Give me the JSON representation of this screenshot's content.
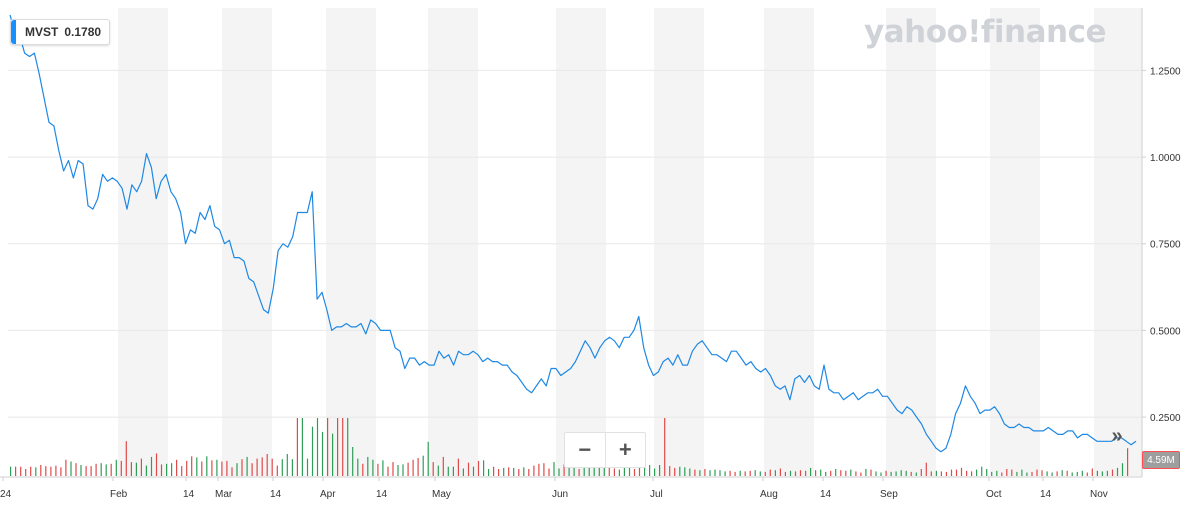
{
  "ticker": {
    "symbol": "MVST",
    "price": "0.1780"
  },
  "logo_text": "yahoo!finance",
  "zoom": {
    "minus": "−",
    "plus": "+"
  },
  "nav_next": "»",
  "volume_badge": "4.59M",
  "colors": {
    "line": "#1e88e5",
    "volume_up": "#2e9e57",
    "volume_down": "#e04a4a",
    "band": "#f4f4f4",
    "accent": "#188fff"
  },
  "chart_data": {
    "type": "line",
    "title": "",
    "xlabel": "",
    "ylabel": "",
    "x_ticks": [
      "24",
      "Feb",
      "14",
      "Mar",
      "14",
      "Apr",
      "14",
      "May",
      "Jun",
      "Jul",
      "Aug",
      "14",
      "Sep",
      "Oct",
      "14",
      "Nov"
    ],
    "y_ticks": [
      "0.2500",
      "0.5000",
      "0.7500",
      "1.0000",
      "1.2500"
    ],
    "ylim": [
      0.08,
      1.43
    ],
    "grid": true,
    "series": [
      {
        "values": [
          1.41,
          1.36,
          1.35,
          1.3,
          1.29,
          1.3,
          1.24,
          1.17,
          1.1,
          1.09,
          1.02,
          0.96,
          0.99,
          0.94,
          0.99,
          0.98,
          0.86,
          0.85,
          0.88,
          0.95,
          0.93,
          0.94,
          0.93,
          0.91,
          0.85,
          0.92,
          0.9,
          0.93,
          1.01,
          0.97,
          0.88,
          0.93,
          0.95,
          0.9,
          0.88,
          0.84,
          0.75,
          0.79,
          0.78,
          0.84,
          0.82,
          0.86,
          0.8,
          0.79,
          0.75,
          0.76,
          0.71,
          0.71,
          0.7,
          0.65,
          0.64,
          0.6,
          0.56,
          0.55,
          0.62,
          0.73,
          0.75,
          0.74,
          0.77,
          0.84,
          0.84,
          0.84,
          0.9,
          0.59,
          0.61,
          0.56,
          0.5,
          0.51,
          0.51,
          0.52,
          0.51,
          0.51,
          0.52,
          0.49,
          0.53,
          0.52,
          0.5,
          0.5,
          0.5,
          0.45,
          0.44,
          0.39,
          0.42,
          0.42,
          0.4,
          0.41,
          0.4,
          0.4,
          0.44,
          0.42,
          0.43,
          0.4,
          0.44,
          0.43,
          0.43,
          0.44,
          0.43,
          0.41,
          0.42,
          0.41,
          0.41,
          0.4,
          0.4,
          0.38,
          0.37,
          0.35,
          0.33,
          0.32,
          0.34,
          0.36,
          0.34,
          0.39,
          0.39,
          0.37,
          0.38,
          0.39,
          0.41,
          0.44,
          0.47,
          0.45,
          0.42,
          0.45,
          0.47,
          0.48,
          0.47,
          0.45,
          0.48,
          0.48,
          0.5,
          0.54,
          0.45,
          0.4,
          0.37,
          0.38,
          0.41,
          0.42,
          0.4,
          0.43,
          0.4,
          0.4,
          0.44,
          0.46,
          0.47,
          0.45,
          0.43,
          0.43,
          0.42,
          0.41,
          0.44,
          0.44,
          0.42,
          0.4,
          0.41,
          0.39,
          0.38,
          0.39,
          0.37,
          0.34,
          0.33,
          0.34,
          0.3,
          0.36,
          0.37,
          0.35,
          0.37,
          0.34,
          0.33,
          0.4,
          0.33,
          0.32,
          0.32,
          0.3,
          0.31,
          0.32,
          0.3,
          0.31,
          0.32,
          0.32,
          0.33,
          0.31,
          0.31,
          0.29,
          0.27,
          0.26,
          0.28,
          0.27,
          0.25,
          0.23,
          0.2,
          0.18,
          0.16,
          0.15,
          0.16,
          0.2,
          0.26,
          0.29,
          0.34,
          0.31,
          0.29,
          0.26,
          0.27,
          0.27,
          0.28,
          0.26,
          0.23,
          0.22,
          0.22,
          0.23,
          0.22,
          0.22,
          0.21,
          0.21,
          0.21,
          0.22,
          0.21,
          0.2,
          0.2,
          0.21,
          0.21,
          0.19,
          0.2,
          0.2,
          0.19,
          0.18,
          0.18,
          0.18,
          0.18,
          0.19,
          0.19,
          0.18,
          0.17,
          0.18
        ]
      }
    ],
    "volume": {
      "values": [
        0.16,
        0.16,
        0.16,
        0.12,
        0.16,
        0.15,
        0.19,
        0.17,
        0.16,
        0.18,
        0.15,
        0.28,
        0.25,
        0.22,
        0.19,
        0.17,
        0.17,
        0.21,
        0.22,
        0.2,
        0.21,
        0.28,
        0.26,
        0.6,
        0.24,
        0.23,
        0.3,
        0.18,
        0.33,
        0.39,
        0.2,
        0.21,
        0.22,
        0.28,
        0.17,
        0.26,
        0.34,
        0.32,
        0.25,
        0.34,
        0.27,
        0.28,
        0.25,
        0.26,
        0.15,
        0.22,
        0.29,
        0.33,
        0.22,
        0.3,
        0.32,
        0.38,
        0.3,
        0.18,
        0.29,
        0.38,
        0.29,
        1.0,
        1.0,
        0.3,
        0.85,
        1.0,
        0.76,
        1.0,
        0.73,
        1.0,
        1.0,
        1.0,
        0.5,
        0.3,
        0.21,
        0.33,
        0.28,
        0.21,
        0.27,
        0.16,
        0.24,
        0.19,
        0.2,
        0.23,
        0.28,
        0.31,
        0.35,
        0.59,
        0.24,
        0.18,
        0.33,
        0.16,
        0.16,
        0.3,
        0.13,
        0.23,
        0.16,
        0.26,
        0.27,
        0.12,
        0.16,
        0.12,
        0.14,
        0.15,
        0.14,
        0.12,
        0.15,
        0.12,
        0.18,
        0.21,
        0.22,
        0.13,
        0.24,
        0.13,
        0.2,
        0.24,
        0.21,
        0.12,
        0.18,
        0.24,
        0.18,
        0.2,
        0.17,
        0.14,
        0.13,
        0.11,
        0.14,
        0.21,
        0.12,
        0.14,
        0.15,
        0.19,
        0.13,
        0.19,
        1.0,
        0.17,
        0.14,
        0.16,
        0.15,
        0.13,
        0.11,
        0.1,
        0.12,
        0.1,
        0.11,
        0.1,
        0.08,
        0.09,
        0.07,
        0.09,
        0.08,
        0.09,
        0.1,
        0.08,
        0.07,
        0.11,
        0.1,
        0.13,
        0.07,
        0.09,
        0.08,
        0.1,
        0.09,
        0.14,
        0.1,
        0.11,
        0.07,
        0.09,
        0.12,
        0.1,
        0.09,
        0.11,
        0.08,
        0.06,
        0.12,
        0.11,
        0.08,
        0.06,
        0.09,
        0.07,
        0.08,
        0.1,
        0.09,
        0.07,
        0.06,
        0.12,
        0.23,
        0.08,
        0.09,
        0.08,
        0.07,
        0.11,
        0.11,
        0.14,
        0.09,
        0.08,
        0.11,
        0.16,
        0.12,
        0.07,
        0.09,
        0.06,
        0.12,
        0.11,
        0.07,
        0.11,
        0.06,
        0.07,
        0.11,
        0.1,
        0.08,
        0.06,
        0.08,
        0.1,
        0.09,
        0.06,
        0.07,
        0.09,
        0.06,
        0.13,
        0.09,
        0.08,
        0.09,
        0.11,
        0.14,
        0.22,
        0.48
      ]
    }
  }
}
